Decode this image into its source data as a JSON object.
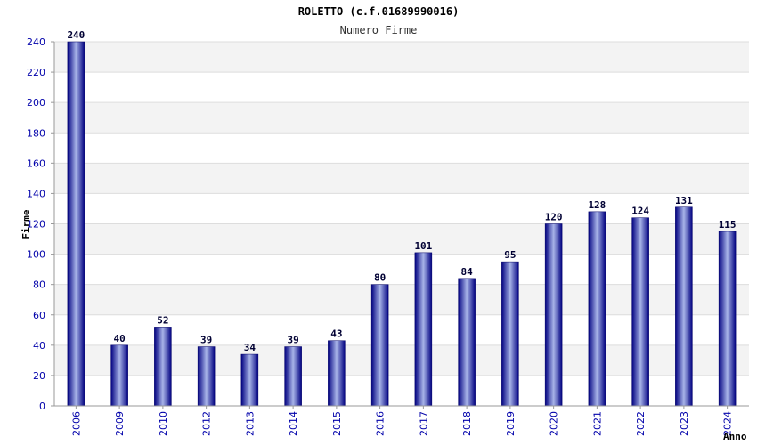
{
  "chart_data": {
    "type": "bar",
    "title": "ROLETTO (c.f.01689990016)",
    "subtitle": "Numero Firme",
    "xlabel": "Anno",
    "ylabel": "Firme",
    "categories": [
      "2006",
      "2009",
      "2010",
      "2012",
      "2013",
      "2014",
      "2015",
      "2016",
      "2017",
      "2018",
      "2019",
      "2020",
      "2021",
      "2022",
      "2023",
      "2024"
    ],
    "values": [
      240,
      40,
      52,
      39,
      34,
      39,
      43,
      80,
      101,
      84,
      95,
      120,
      128,
      124,
      131,
      115
    ],
    "ylim": [
      0,
      240
    ],
    "yticks": [
      0,
      20,
      40,
      60,
      80,
      100,
      120,
      140,
      160,
      180,
      200,
      220,
      240
    ],
    "grid": true,
    "data_labels": true,
    "colors": {
      "bar_dark": "#000080",
      "bar_light": "#a8b4e8",
      "band": "#f3f3f3",
      "tick_text": "#0000aa"
    }
  }
}
